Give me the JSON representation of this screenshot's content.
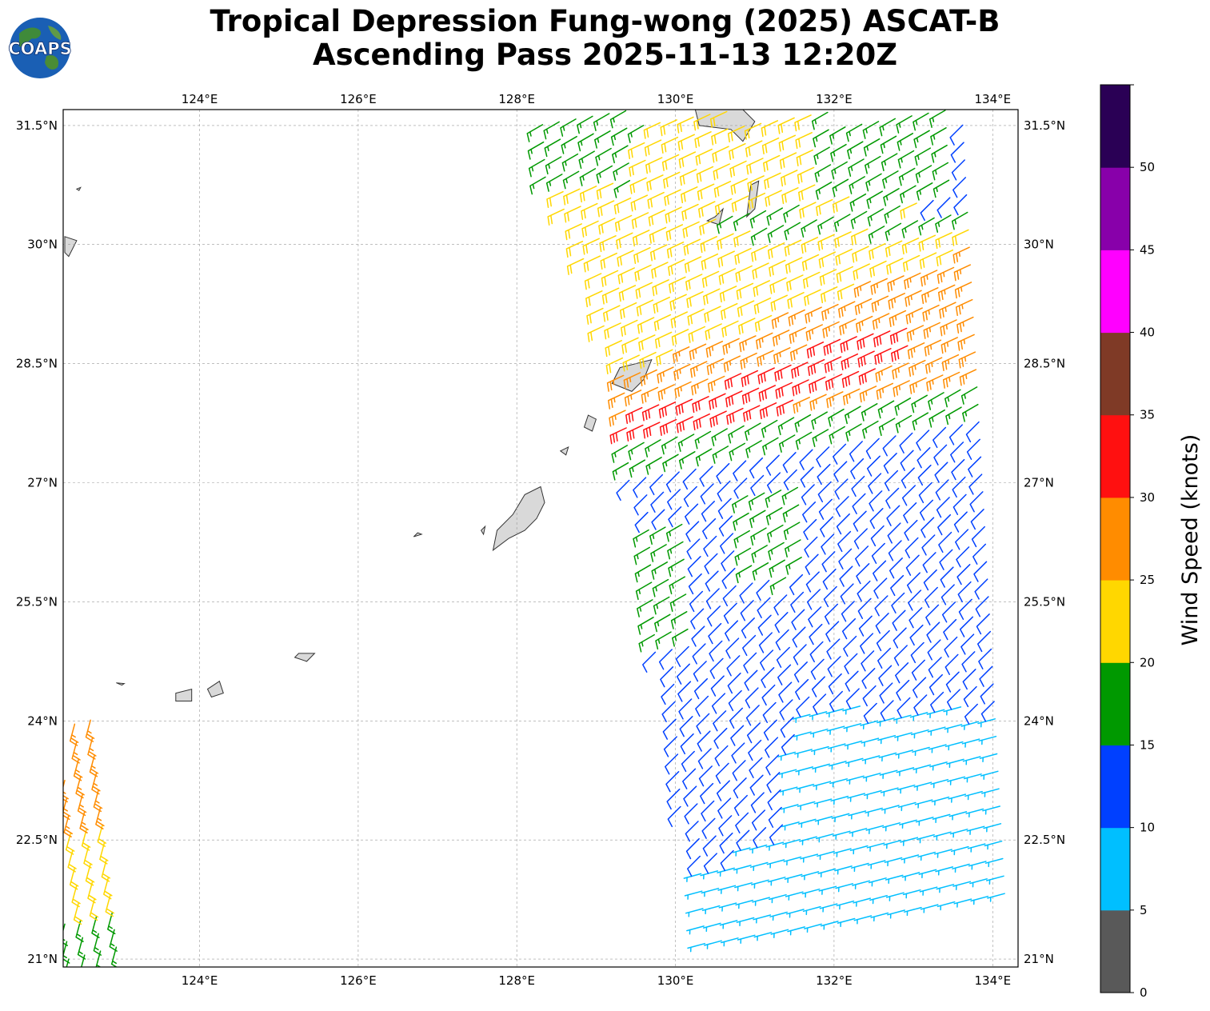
{
  "title": {
    "line1": "Tropical Depression Fung-wong (2025) ASCAT-B",
    "line2": "Ascending Pass 2025-11-13 12:20Z"
  },
  "logo": {
    "text": "COAPS",
    "icon": "globe-logo-icon"
  },
  "map": {
    "projection": "plate-carree",
    "lon_range": [
      122.28,
      134.32
    ],
    "lat_range": [
      20.9,
      31.7
    ],
    "lon_ticks": [
      124,
      126,
      128,
      130,
      132,
      134
    ],
    "lat_ticks": [
      21,
      22.5,
      24,
      25.5,
      27,
      28.5,
      30,
      31.5
    ],
    "lon_tick_labels": [
      "124°E",
      "126°E",
      "128°E",
      "130°E",
      "132°E",
      "134°E"
    ],
    "lat_tick_labels": [
      "21°N",
      "22.5°N",
      "24°N",
      "25.5°N",
      "27°N",
      "28.5°N",
      "30°N",
      "31.5°N"
    ],
    "grid": true,
    "land_color": "#d9d9d9"
  },
  "colorbar": {
    "label": "Wind Speed (knots)",
    "ticks": [
      "0",
      "5",
      "10",
      "15",
      "20",
      "25",
      "30",
      "35",
      "40",
      "45",
      "50"
    ],
    "bins": [
      {
        "range": [
          0,
          5
        ],
        "color": "#595959"
      },
      {
        "range": [
          5,
          10
        ],
        "color": "#00bfff"
      },
      {
        "range": [
          10,
          15
        ],
        "color": "#0040ff"
      },
      {
        "range": [
          15,
          20
        ],
        "color": "#009900"
      },
      {
        "range": [
          20,
          25
        ],
        "color": "#ffd700"
      },
      {
        "range": [
          25,
          30
        ],
        "color": "#ff8c00"
      },
      {
        "range": [
          30,
          35
        ],
        "color": "#ff1010"
      },
      {
        "range": [
          35,
          40
        ],
        "color": "#7f3a26"
      },
      {
        "range": [
          40,
          45
        ],
        "color": "#ff00ff"
      },
      {
        "range": [
          45,
          50
        ],
        "color": "#8800aa"
      },
      {
        "range": [
          50,
          55
        ],
        "color": "#2a0055"
      }
    ]
  }
}
